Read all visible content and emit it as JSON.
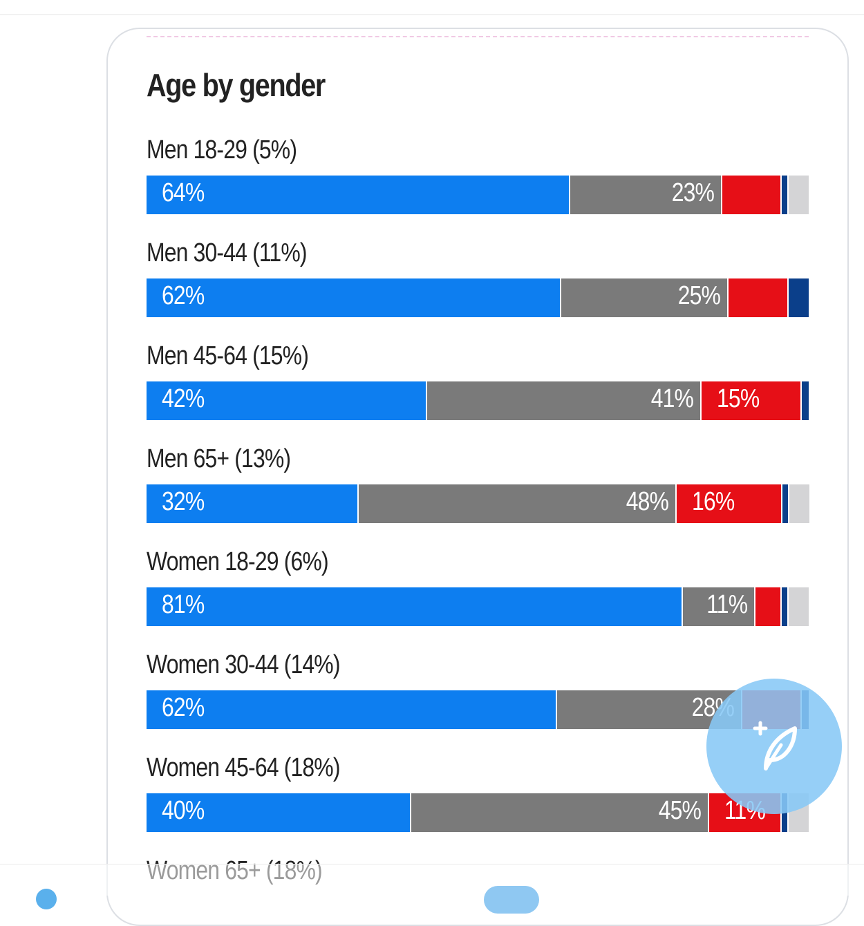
{
  "chart_data": {
    "type": "bar",
    "orientation": "horizontal-stacked",
    "title": "Age by gender",
    "colors": {
      "dem": "#0d7ef0",
      "other": "#7a7a7a",
      "rep": "#e60f17",
      "ind": "#0b3f8a",
      "none": "#d4d4d6"
    },
    "rows": [
      {
        "label": "Men 18-29 (5%)",
        "segments": [
          {
            "key": "dem",
            "value": 64,
            "label": "64%"
          },
          {
            "key": "other",
            "value": 23,
            "label": "23%"
          },
          {
            "key": "rep",
            "value": 9,
            "label": ""
          },
          {
            "key": "ind",
            "value": 1,
            "label": ""
          },
          {
            "key": "none",
            "value": 3,
            "label": ""
          }
        ]
      },
      {
        "label": "Men 30-44 (11%)",
        "segments": [
          {
            "key": "dem",
            "value": 62,
            "label": "62%"
          },
          {
            "key": "other",
            "value": 25,
            "label": "25%"
          },
          {
            "key": "rep",
            "value": 9,
            "label": ""
          },
          {
            "key": "ind",
            "value": 3,
            "label": ""
          }
        ]
      },
      {
        "label": "Men 45-64 (15%)",
        "segments": [
          {
            "key": "dem",
            "value": 42,
            "label": "42%"
          },
          {
            "key": "other",
            "value": 41,
            "label": "41%"
          },
          {
            "key": "rep",
            "value": 15,
            "label": "15%"
          },
          {
            "key": "ind",
            "value": 1,
            "label": ""
          }
        ]
      },
      {
        "label": "Men 65+ (13%)",
        "segments": [
          {
            "key": "dem",
            "value": 32,
            "label": "32%"
          },
          {
            "key": "other",
            "value": 48,
            "label": "48%"
          },
          {
            "key": "rep",
            "value": 16,
            "label": "16%"
          },
          {
            "key": "ind",
            "value": 1,
            "label": ""
          },
          {
            "key": "none",
            "value": 3,
            "label": ""
          }
        ]
      },
      {
        "label": "Women 18-29 (6%)",
        "segments": [
          {
            "key": "dem",
            "value": 81,
            "label": "81%"
          },
          {
            "key": "other",
            "value": 11,
            "label": "11%"
          },
          {
            "key": "rep",
            "value": 4,
            "label": ""
          },
          {
            "key": "ind",
            "value": 1,
            "label": ""
          },
          {
            "key": "none",
            "value": 3,
            "label": ""
          }
        ]
      },
      {
        "label": "Women 30-44 (14%)",
        "segments": [
          {
            "key": "dem",
            "value": 62,
            "label": "62%"
          },
          {
            "key": "other",
            "value": 28,
            "label": "28%"
          },
          {
            "key": "rep",
            "value": 9,
            "label": ""
          },
          {
            "key": "ind",
            "value": 1,
            "label": ""
          }
        ]
      },
      {
        "label": "Women 45-64 (18%)",
        "segments": [
          {
            "key": "dem",
            "value": 40,
            "label": "40%"
          },
          {
            "key": "other",
            "value": 45,
            "label": "45%"
          },
          {
            "key": "rep",
            "value": 11,
            "label": "11%"
          },
          {
            "key": "ind",
            "value": 1,
            "label": ""
          },
          {
            "key": "none",
            "value": 3,
            "label": ""
          }
        ]
      },
      {
        "label": "Women 65+ (18%)",
        "segments": []
      }
    ]
  },
  "compose_button": {
    "icon": "feather-plus-icon"
  }
}
